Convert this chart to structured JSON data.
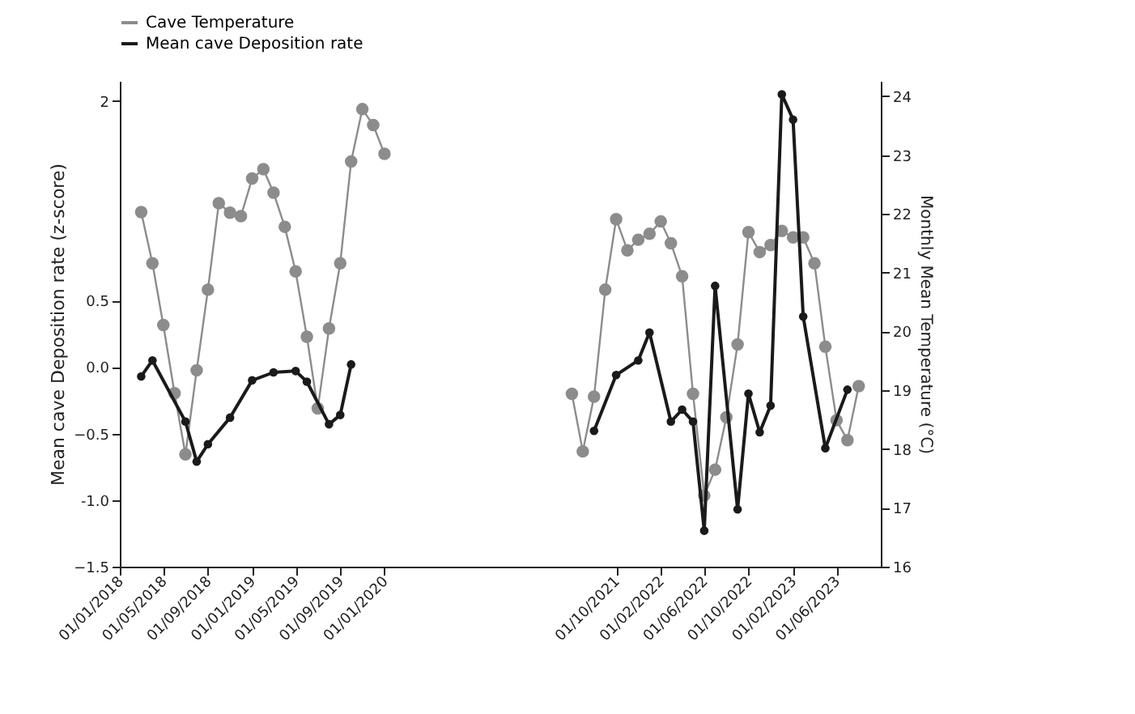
{
  "chart_data": {
    "type": "line",
    "ylabel": "Mean cave Deposition rate (z-score)",
    "y2label": "Monthly Mean Temperature (°C)",
    "xlim": [
      "2018-01",
      "2023-10"
    ],
    "xticks": [
      {
        "value": "2018-01",
        "label": "01/01/2018"
      },
      {
        "value": "2018-05",
        "label": "01/05/2018"
      },
      {
        "value": "2018-09",
        "label": "01/09/2018"
      },
      {
        "value": "2019-01",
        "label": "01/01/2019"
      },
      {
        "value": "2019-05",
        "label": "01/05/2019"
      },
      {
        "value": "2019-09",
        "label": "01/09/2019"
      },
      {
        "value": "2020-01",
        "label": "01/01/2020"
      },
      {
        "value": "2021-10",
        "label": "01/10/2021"
      },
      {
        "value": "2022-02",
        "label": "01/02/2022"
      },
      {
        "value": "2022-06",
        "label": "01/06/2022"
      },
      {
        "value": "2022-10",
        "label": "01/10/2022"
      },
      {
        "value": "2023-02",
        "label": "01/02/2023"
      },
      {
        "value": "2023-06",
        "label": "01/06/2023"
      }
    ],
    "ylim": [
      -1.5,
      2.15
    ],
    "yticks": [
      -1.5,
      {
        "value": -1.0,
        "label": "-1.0"
      },
      -0.5,
      {
        "value": 0,
        "label": "0.0"
      },
      0.5,
      2
    ],
    "y2lim": [
      16,
      24.26
    ],
    "y2ticks": [
      16,
      17,
      18,
      19,
      20,
      21,
      22,
      23,
      24
    ],
    "legend": "top left",
    "marker": "circle",
    "series": [
      {
        "name": "Cave Temperature",
        "color": "#8c8c8c",
        "axis": "y2",
        "x": [
          "2018-03",
          "2018-04",
          "2018-05",
          "2018-06",
          "2018-07",
          "2018-08",
          "2018-09",
          "2018-10",
          "2018-11",
          "2018-12",
          "2019-01",
          "2019-02",
          "2019-03",
          "2019-04",
          "2019-05",
          "2019-06",
          "2019-07",
          "2019-08",
          "2019-09",
          "2019-10",
          "2019-11",
          "2019-12",
          "2020-01",
          "2020-09",
          "2021-06",
          "2021-07",
          "2021-08",
          "2021-09",
          "2021-10",
          "2021-11",
          "2021-12",
          "2022-01",
          "2022-02",
          "2022-03",
          "2022-04",
          "2022-05",
          "2022-06",
          "2022-07",
          "2022-08",
          "2022-09",
          "2022-10",
          "2022-11",
          "2022-12",
          "2023-01",
          "2023-02",
          "2023-03",
          "2023-04",
          "2023-05",
          "2023-06",
          "2023-07",
          "2023-08"
        ],
        "values": [
          22.03,
          21.16,
          20.11,
          18.95,
          17.91,
          19.34,
          20.71,
          22.18,
          22.02,
          21.96,
          22.6,
          22.76,
          22.36,
          21.78,
          21.02,
          19.91,
          18.69,
          20.05,
          21.16,
          22.89,
          23.78,
          23.51,
          23.02,
          null,
          18.94,
          17.96,
          18.89,
          20.71,
          21.91,
          21.38,
          21.56,
          21.66,
          21.87,
          21.5,
          20.94,
          18.94,
          17.21,
          17.65,
          18.54,
          19.78,
          21.69,
          21.35,
          21.47,
          21.71,
          21.6,
          21.6,
          21.16,
          19.74,
          18.49,
          18.15,
          19.07
        ]
      },
      {
        "name": "Mean cave Deposition rate",
        "color": "#1a1a1a",
        "x": [
          "2018-03",
          "2018-04",
          "2018-07",
          "2018-08",
          "2018-09",
          "2018-11",
          "2019-01",
          "2019-03",
          "2019-05",
          "2019-06",
          "2019-08",
          "2019-09",
          "2019-10",
          "2020-09",
          "2021-08",
          "2021-10",
          "2021-12",
          "2022-01",
          "2022-03",
          "2022-04",
          "2022-05",
          "2022-06",
          "2022-07",
          "2022-09",
          "2022-10",
          "2022-11",
          "2022-12",
          "2023-01",
          "2023-02",
          "2023-03",
          "2023-05",
          "2023-07"
        ],
        "values": [
          -0.07,
          0.05,
          -0.41,
          -0.71,
          -0.58,
          -0.38,
          -0.1,
          -0.04,
          -0.03,
          -0.11,
          -0.43,
          -0.36,
          0.02,
          null,
          -0.48,
          -0.06,
          0.05,
          0.26,
          -0.41,
          -0.32,
          -0.41,
          -1.23,
          0.61,
          -1.07,
          -0.2,
          -0.49,
          -0.29,
          2.05,
          1.86,
          0.38,
          -0.61,
          -0.17
        ]
      }
    ]
  }
}
